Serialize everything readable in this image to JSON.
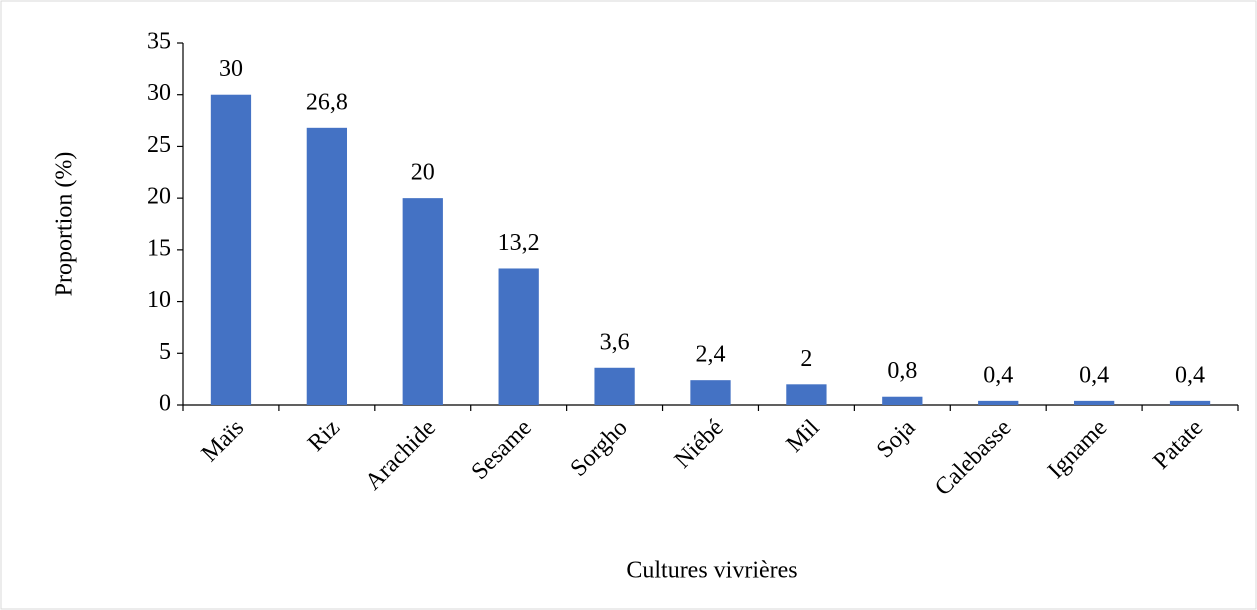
{
  "chart_data": {
    "type": "bar",
    "x_label": "Cultures vivrières",
    "y_label": "Proportion (%)",
    "categories": [
      "Maïs",
      "Riz",
      "Arachide",
      "Sesame",
      "Sorgho",
      "Niébé",
      "Mil",
      "Soja",
      "Calebasse",
      "Igname",
      "Patate"
    ],
    "values": [
      30,
      26.8,
      20,
      13.2,
      3.6,
      2.4,
      2,
      0.8,
      0.4,
      0.4,
      0.4
    ],
    "value_labels": [
      "30",
      "26,8",
      "20",
      "13,2",
      "3,6",
      "2,4",
      "2",
      "0,8",
      "0,4",
      "0,4",
      "0,4"
    ],
    "color": "#4472c4",
    "ylim": [
      0,
      35
    ],
    "yticks": [
      0,
      5,
      10,
      15,
      20,
      25,
      30,
      35
    ],
    "grid": false
  }
}
